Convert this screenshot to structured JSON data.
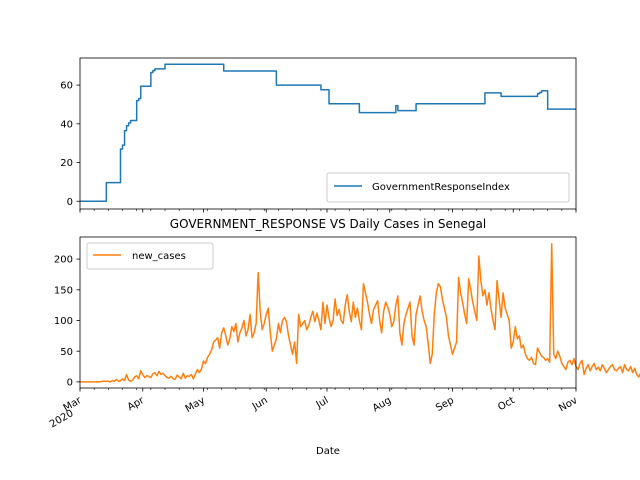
{
  "chart_data": [
    {
      "type": "line",
      "title": "",
      "xlabel": "",
      "ylabel": "",
      "ylim": [
        -4,
        74
      ],
      "yticks": [
        0,
        20,
        40,
        60
      ],
      "grid": false,
      "legend": {
        "placement": "lower-right",
        "entries": [
          "GovernmentResponseIndex"
        ]
      },
      "series": [
        {
          "name": "GovernmentResponseIndex",
          "color": "#1f77b4",
          "step": true,
          "points": [
            [
              "2020-03-01",
              0
            ],
            [
              "2020-03-13",
              0
            ],
            [
              "2020-03-14",
              9.6
            ],
            [
              "2020-03-20",
              9.6
            ],
            [
              "2020-03-21",
              27
            ],
            [
              "2020-03-22",
              29
            ],
            [
              "2020-03-23",
              36.5
            ],
            [
              "2020-03-24",
              39
            ],
            [
              "2020-03-25",
              40.5
            ],
            [
              "2020-03-26",
              41.7
            ],
            [
              "2020-03-28",
              41.7
            ],
            [
              "2020-03-29",
              52
            ],
            [
              "2020-03-30",
              53
            ],
            [
              "2020-03-31",
              59.4
            ],
            [
              "2020-04-04",
              59.4
            ],
            [
              "2020-04-05",
              66.5
            ],
            [
              "2020-04-06",
              67.5
            ],
            [
              "2020-04-07",
              68.4
            ],
            [
              "2020-04-11",
              68.4
            ],
            [
              "2020-04-12",
              70.8
            ],
            [
              "2020-05-10",
              70.8
            ],
            [
              "2020-05-11",
              67.3
            ],
            [
              "2020-06-05",
              67.3
            ],
            [
              "2020-06-06",
              60
            ],
            [
              "2020-06-27",
              60
            ],
            [
              "2020-06-28",
              57.6
            ],
            [
              "2020-07-01",
              57.6
            ],
            [
              "2020-07-02",
              50.4
            ],
            [
              "2020-07-16",
              50.4
            ],
            [
              "2020-07-17",
              45.8
            ],
            [
              "2020-08-03",
              45.8
            ],
            [
              "2020-08-04",
              49.4
            ],
            [
              "2020-08-05",
              46.8
            ],
            [
              "2020-08-13",
              46.8
            ],
            [
              "2020-08-14",
              50.4
            ],
            [
              "2020-09-16",
              50.4
            ],
            [
              "2020-09-17",
              56
            ],
            [
              "2020-09-24",
              56
            ],
            [
              "2020-09-25",
              54.2
            ],
            [
              "2020-10-12",
              54.2
            ],
            [
              "2020-10-13",
              55.6
            ],
            [
              "2020-10-14",
              56.2
            ],
            [
              "2020-10-15",
              57.1
            ],
            [
              "2020-10-17",
              57.1
            ],
            [
              "2020-10-18",
              47.6
            ],
            [
              "2020-11-01",
              47.6
            ]
          ]
        }
      ]
    },
    {
      "type": "line",
      "title": "GOVERNMENT_RESPONSE VS Daily Cases in Senegal",
      "xlabel": "Date",
      "ylabel": "",
      "ylim": [
        -10,
        236
      ],
      "yticks": [
        0,
        50,
        100,
        150,
        200
      ],
      "xlim": [
        "2020-03-01",
        "2020-11-01"
      ],
      "xticks": [
        {
          "date": "2020-03-01",
          "label": "Mar\n2020"
        },
        {
          "date": "2020-04-01",
          "label": "Apr"
        },
        {
          "date": "2020-05-01",
          "label": "May"
        },
        {
          "date": "2020-06-01",
          "label": "Jun"
        },
        {
          "date": "2020-07-01",
          "label": "Jul"
        },
        {
          "date": "2020-08-01",
          "label": "Aug"
        },
        {
          "date": "2020-09-01",
          "label": "Sep"
        },
        {
          "date": "2020-10-01",
          "label": "Oct"
        },
        {
          "date": "2020-11-01",
          "label": "Nov"
        }
      ],
      "grid": false,
      "legend": {
        "placement": "upper-left",
        "entries": [
          "new_cases"
        ]
      },
      "series": [
        {
          "name": "new_cases",
          "color": "#ff7f0e",
          "start": "2020-03-01",
          "values": [
            0,
            0,
            0,
            0,
            0,
            0,
            0,
            0,
            0,
            0,
            0,
            1,
            1,
            1,
            1,
            0,
            2,
            1,
            4,
            1,
            2,
            5,
            2,
            12,
            3,
            1,
            3,
            8,
            10,
            5,
            18,
            12,
            7,
            10,
            9,
            7,
            13,
            15,
            10,
            17,
            12,
            14,
            10,
            7,
            6,
            9,
            5,
            4,
            11,
            8,
            5,
            14,
            6,
            10,
            9,
            12,
            5,
            13,
            20,
            15,
            21,
            34,
            30,
            40,
            45,
            52,
            65,
            68,
            72,
            55,
            80,
            88,
            75,
            60,
            70,
            90,
            82,
            95,
            65,
            80,
            88,
            100,
            75,
            85,
            110,
            72,
            80,
            95,
            178,
            115,
            85,
            95,
            110,
            120,
            80,
            50,
            60,
            70,
            95,
            80,
            100,
            105,
            98,
            75,
            60,
            45,
            65,
            30,
            110,
            90,
            95,
            100,
            85,
            92,
            105,
            115,
            98,
            112,
            100,
            85,
            130,
            95,
            125,
            105,
            90,
            100,
            135,
            108,
            118,
            100,
            95,
            125,
            142,
            115,
            98,
            130,
            105,
            120,
            100,
            85,
            160,
            145,
            130,
            110,
            95,
            118,
            125,
            132,
            100,
            80,
            115,
            130,
            122,
            110,
            90,
            98,
            125,
            140,
            80,
            60,
            95,
            110,
            120,
            130,
            75,
            60,
            110,
            125,
            140,
            115,
            100,
            90,
            62,
            30,
            45,
            110,
            145,
            160,
            155,
            135,
            120,
            105,
            75,
            60,
            45,
            55,
            65,
            170,
            145,
            130,
            110,
            95,
            168,
            150,
            130,
            115,
            100,
            205,
            165,
            140,
            150,
            125,
            145,
            120,
            100,
            85,
            165,
            135,
            105,
            145,
            120,
            110,
            100,
            55,
            65,
            90,
            70,
            75,
            55,
            60,
            45,
            38,
            35,
            40,
            30,
            28,
            55,
            48,
            42,
            40,
            35,
            38,
            32,
            225,
            45,
            38,
            50,
            42,
            30,
            25,
            20,
            32,
            35,
            28,
            38,
            25,
            20,
            30,
            35,
            12,
            22,
            28,
            18,
            25,
            30,
            20,
            24,
            18,
            28,
            22,
            15,
            20,
            25,
            28,
            20,
            18,
            22,
            25,
            15,
            28,
            20,
            18,
            25,
            15,
            22,
            12,
            8,
            15,
            10,
            12,
            14,
            15
          ]
        }
      ]
    }
  ]
}
